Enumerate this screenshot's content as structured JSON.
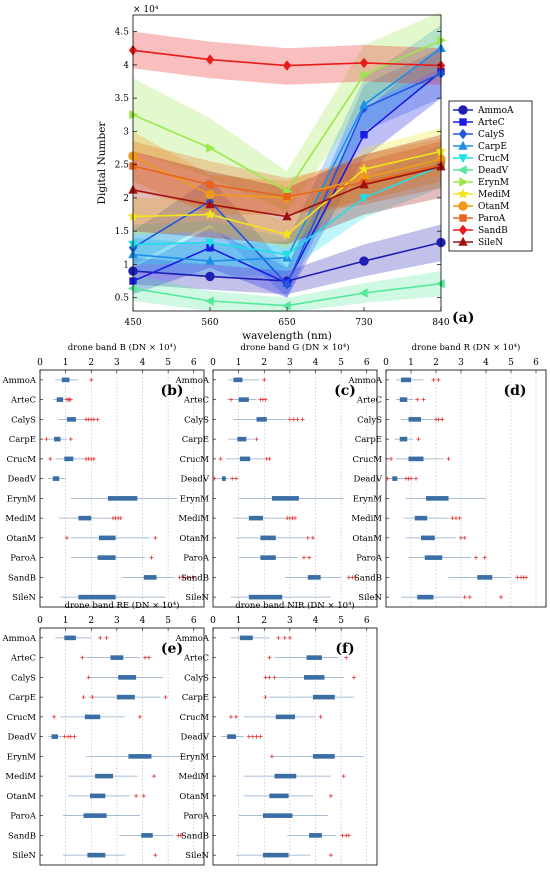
{
  "chart_data": [
    {
      "type": "line",
      "panel_label": "(a)",
      "xlabel": "wavelength (nm)",
      "ylabel": "Digital Number",
      "y_exponent_label": "× 10⁴",
      "x": [
        450,
        560,
        650,
        730,
        840
      ],
      "ylim": [
        0.3,
        4.75
      ],
      "y_ticks": [
        0.5,
        1,
        1.5,
        2,
        2.5,
        3,
        3.5,
        4,
        4.5
      ],
      "y_tick_labels": [
        "0.5",
        "1",
        "1.5",
        "2",
        "2.5",
        "3",
        "3.5",
        "4",
        "4.5"
      ],
      "grid": false,
      "legend_position": "right",
      "series": [
        {
          "name": "AmmoA",
          "color": "#1f1fb4",
          "marker": "circle",
          "values": [
            0.9,
            0.82,
            0.75,
            1.05,
            1.33
          ],
          "lower": [
            0.7,
            0.62,
            0.55,
            0.82,
            1.05
          ],
          "upper": [
            1.1,
            1.0,
            0.9,
            1.3,
            1.6
          ]
        },
        {
          "name": "ArteC",
          "color": "#1a1ae6",
          "marker": "square",
          "values": [
            0.75,
            1.25,
            0.72,
            2.95,
            3.9
          ],
          "lower": [
            0.55,
            0.95,
            0.5,
            2.6,
            3.5
          ],
          "upper": [
            0.95,
            1.55,
            0.95,
            3.3,
            4.3
          ]
        },
        {
          "name": "CalyS",
          "color": "#2156e0",
          "marker": "diamond",
          "values": [
            1.25,
            1.95,
            0.7,
            3.35,
            3.87
          ],
          "lower": [
            1.0,
            1.6,
            0.5,
            3.0,
            3.5
          ],
          "upper": [
            1.5,
            2.3,
            0.95,
            3.7,
            4.25
          ]
        },
        {
          "name": "CarpE",
          "color": "#1e8fe8",
          "marker": "triangle-up",
          "values": [
            1.15,
            1.05,
            1.1,
            3.4,
            4.25
          ],
          "lower": [
            0.9,
            0.8,
            0.85,
            3.0,
            3.85
          ],
          "upper": [
            1.4,
            1.3,
            1.35,
            3.8,
            4.6
          ]
        },
        {
          "name": "CrucM",
          "color": "#1ee0e6",
          "marker": "triangle-down",
          "values": [
            1.3,
            1.33,
            1.15,
            2.0,
            2.48
          ],
          "lower": [
            1.0,
            1.0,
            0.9,
            1.7,
            2.15
          ],
          "upper": [
            1.6,
            1.65,
            1.4,
            2.3,
            2.8
          ]
        },
        {
          "name": "DeadV",
          "color": "#55e89a",
          "marker": "triangle-left",
          "values": [
            0.64,
            0.45,
            0.38,
            0.57,
            0.71
          ],
          "lower": [
            0.45,
            0.3,
            0.28,
            0.42,
            0.52
          ],
          "upper": [
            0.85,
            0.6,
            0.5,
            0.72,
            0.9
          ]
        },
        {
          "name": "ErynM",
          "color": "#9ae84a",
          "marker": "triangle-right",
          "values": [
            3.25,
            2.75,
            2.1,
            3.85,
            4.37
          ],
          "lower": [
            2.7,
            2.3,
            1.8,
            3.4,
            3.95
          ],
          "upper": [
            3.8,
            3.2,
            2.4,
            4.3,
            4.8
          ]
        },
        {
          "name": "MediM",
          "color": "#f0e61a",
          "marker": "star",
          "values": [
            1.72,
            1.75,
            1.45,
            2.43,
            2.7
          ],
          "lower": [
            1.45,
            1.5,
            1.25,
            2.1,
            2.35
          ],
          "upper": [
            2.0,
            2.0,
            1.65,
            2.75,
            3.05
          ]
        },
        {
          "name": "OtanM",
          "color": "#f09a1a",
          "marker": "circle",
          "values": [
            2.63,
            2.05,
            2.0,
            2.3,
            2.58
          ],
          "lower": [
            2.25,
            1.75,
            1.75,
            1.95,
            2.25
          ],
          "upper": [
            3.0,
            2.35,
            2.25,
            2.65,
            2.9
          ]
        },
        {
          "name": "ParoA",
          "color": "#e8641a",
          "marker": "square",
          "values": [
            2.48,
            2.2,
            2.02,
            2.23,
            2.5
          ],
          "lower": [
            2.1,
            1.85,
            1.75,
            1.9,
            2.15
          ],
          "upper": [
            2.85,
            2.55,
            2.3,
            2.55,
            2.85
          ]
        },
        {
          "name": "SandB",
          "color": "#e81a1a",
          "marker": "diamond",
          "values": [
            4.22,
            4.08,
            3.99,
            4.03,
            3.99
          ],
          "lower": [
            3.95,
            3.8,
            3.7,
            3.75,
            3.7
          ],
          "upper": [
            4.5,
            4.35,
            4.25,
            4.3,
            4.25
          ]
        },
        {
          "name": "SileN",
          "color": "#a01010",
          "marker": "triangle-up",
          "values": [
            2.12,
            1.9,
            1.72,
            2.2,
            2.47
          ],
          "lower": [
            1.5,
            1.4,
            1.3,
            1.75,
            2.0
          ],
          "upper": [
            2.7,
            2.4,
            2.15,
            2.65,
            2.95
          ]
        }
      ]
    },
    {
      "type": "box",
      "title": "drone band B  (DN × 10⁴)",
      "panel_label": "(b)",
      "x_ticks": [
        0,
        1,
        2,
        3,
        4,
        5,
        6
      ],
      "categories": [
        "AmmoA",
        "ArteC",
        "CalyS",
        "CarpE",
        "CrucM",
        "DeadV",
        "ErynM",
        "MediM",
        "OtanM",
        "ParoA",
        "SandB",
        "SileN"
      ],
      "boxes": [
        {
          "wmin": 0.6,
          "q1": 0.85,
          "q3": 1.15,
          "wmax": 1.5,
          "outliers": [
            2.0
          ]
        },
        {
          "wmin": 0.5,
          "q1": 0.65,
          "q3": 0.9,
          "wmax": 1.0,
          "outliers": [
            1.05,
            1.1,
            1.15,
            1.2
          ]
        },
        {
          "wmin": 0.7,
          "q1": 1.05,
          "q3": 1.4,
          "wmax": 1.75,
          "outliers": [
            1.8,
            1.9,
            2.0,
            2.1,
            2.25
          ]
        },
        {
          "wmin": 0.3,
          "q1": 0.55,
          "q3": 0.8,
          "wmax": 1.05,
          "outliers": [
            0.25,
            1.2
          ]
        },
        {
          "wmin": 0.6,
          "q1": 0.95,
          "q3": 1.3,
          "wmax": 1.75,
          "outliers": [
            0.4,
            1.8,
            1.9,
            2.0,
            2.1
          ]
        },
        {
          "wmin": 0.3,
          "q1": 0.5,
          "q3": 0.75,
          "wmax": 1.0,
          "outliers": []
        },
        {
          "wmin": 1.2,
          "q1": 2.65,
          "q3": 3.8,
          "wmax": 5.35,
          "outliers": []
        },
        {
          "wmin": 0.75,
          "q1": 1.5,
          "q3": 2.0,
          "wmax": 2.75,
          "outliers": [
            2.85,
            2.95,
            3.05,
            3.15
          ]
        },
        {
          "wmin": 1.2,
          "q1": 2.3,
          "q3": 2.95,
          "wmax": 4.3,
          "outliers": [
            1.05,
            4.5
          ]
        },
        {
          "wmin": 1.2,
          "q1": 2.25,
          "q3": 2.95,
          "wmax": 4.1,
          "outliers": [
            4.35
          ]
        },
        {
          "wmin": 3.2,
          "q1": 4.05,
          "q3": 4.55,
          "wmax": 5.25,
          "outliers": [
            5.45,
            5.6,
            5.75,
            5.95
          ]
        },
        {
          "wmin": 0.8,
          "q1": 1.5,
          "q3": 2.95,
          "wmax": 4.9,
          "outliers": []
        }
      ]
    },
    {
      "type": "box",
      "title": "drone band G  (DN × 10⁴)",
      "panel_label": "(c)",
      "x_ticks": [
        0,
        1,
        2,
        3,
        4,
        5,
        6
      ],
      "categories": [
        "AmmoA",
        "ArteC",
        "CalyS",
        "CarpE",
        "CrucM",
        "DeadV",
        "ErynM",
        "MediM",
        "OtanM",
        "ParoA",
        "SandB",
        "SileN"
      ],
      "boxes": [
        {
          "wmin": 0.6,
          "q1": 0.8,
          "q3": 1.15,
          "wmax": 1.8,
          "outliers": [
            2.0
          ]
        },
        {
          "wmin": 0.55,
          "q1": 1.0,
          "q3": 1.4,
          "wmax": 1.7,
          "outliers": [
            0.7,
            1.85,
            1.95,
            2.05
          ]
        },
        {
          "wmin": 0.8,
          "q1": 1.7,
          "q3": 2.1,
          "wmax": 2.9,
          "outliers": [
            3.0,
            3.15,
            3.3,
            3.5
          ]
        },
        {
          "wmin": 0.6,
          "q1": 0.95,
          "q3": 1.3,
          "wmax": 1.6,
          "outliers": [
            1.7
          ]
        },
        {
          "wmin": 0.5,
          "q1": 1.05,
          "q3": 1.45,
          "wmax": 2.05,
          "outliers": [
            0.3,
            2.1,
            2.2
          ]
        },
        {
          "wmin": 0.15,
          "q1": 0.35,
          "q3": 0.5,
          "wmax": 0.6,
          "outliers": [
            0.05,
            0.75,
            0.9
          ]
        },
        {
          "wmin": 1.0,
          "q1": 2.3,
          "q3": 3.35,
          "wmax": 5.1,
          "outliers": []
        },
        {
          "wmin": 0.8,
          "q1": 1.4,
          "q3": 1.95,
          "wmax": 2.8,
          "outliers": [
            2.9,
            3.0,
            3.1,
            3.2
          ]
        },
        {
          "wmin": 0.9,
          "q1": 1.85,
          "q3": 2.45,
          "wmax": 3.6,
          "outliers": [
            3.7,
            3.9
          ]
        },
        {
          "wmin": 1.0,
          "q1": 1.85,
          "q3": 2.45,
          "wmax": 3.3,
          "outliers": [
            3.55,
            3.75
          ]
        },
        {
          "wmin": 2.8,
          "q1": 3.7,
          "q3": 4.2,
          "wmax": 5.0,
          "outliers": [
            5.3,
            5.45,
            5.55
          ]
        },
        {
          "wmin": 0.7,
          "q1": 1.4,
          "q3": 2.7,
          "wmax": 4.6,
          "outliers": []
        }
      ]
    },
    {
      "type": "box",
      "title": "drone band R  (DN × 10⁴)",
      "panel_label": "(d)",
      "x_ticks": [
        0,
        1,
        2,
        3,
        4,
        5,
        6
      ],
      "categories": [
        "AmmoA",
        "ArteC",
        "CalyS",
        "CarpE",
        "CrucM",
        "DeadV",
        "ErynM",
        "MediM",
        "OtanM",
        "ParoA",
        "SandB",
        "SileN"
      ],
      "boxes": [
        {
          "wmin": 0.4,
          "q1": 0.6,
          "q3": 1.0,
          "wmax": 1.5,
          "outliers": [
            1.9,
            2.1
          ]
        },
        {
          "wmin": 0.4,
          "q1": 0.55,
          "q3": 0.85,
          "wmax": 1.1,
          "outliers": [
            1.25,
            1.5
          ]
        },
        {
          "wmin": 0.6,
          "q1": 0.9,
          "q3": 1.4,
          "wmax": 1.9,
          "outliers": [
            2.0,
            2.1,
            2.25
          ]
        },
        {
          "wmin": 0.35,
          "q1": 0.55,
          "q3": 0.85,
          "wmax": 1.1,
          "outliers": [
            1.3
          ]
        },
        {
          "wmin": 0.4,
          "q1": 0.9,
          "q3": 1.5,
          "wmax": 2.3,
          "outliers": [
            0.2,
            2.5
          ]
        },
        {
          "wmin": 0.1,
          "q1": 0.25,
          "q3": 0.45,
          "wmax": 0.7,
          "outliers": [
            0.05,
            0.8,
            0.9,
            1.0,
            1.2
          ]
        },
        {
          "wmin": 0.8,
          "q1": 1.6,
          "q3": 2.5,
          "wmax": 4.0,
          "outliers": []
        },
        {
          "wmin": 0.7,
          "q1": 1.15,
          "q3": 1.65,
          "wmax": 2.5,
          "outliers": [
            2.65,
            2.8,
            2.95
          ]
        },
        {
          "wmin": 0.8,
          "q1": 1.4,
          "q3": 1.95,
          "wmax": 2.8,
          "outliers": [
            3.0,
            3.15
          ]
        },
        {
          "wmin": 0.9,
          "q1": 1.55,
          "q3": 2.25,
          "wmax": 3.4,
          "outliers": [
            3.6,
            3.95
          ]
        },
        {
          "wmin": 2.5,
          "q1": 3.65,
          "q3": 4.25,
          "wmax": 5.0,
          "outliers": [
            5.25,
            5.4,
            5.5,
            5.6
          ]
        },
        {
          "wmin": 0.6,
          "q1": 1.25,
          "q3": 1.9,
          "wmax": 3.0,
          "outliers": [
            3.15,
            3.35,
            4.6
          ]
        }
      ]
    },
    {
      "type": "box",
      "title": "drone band RE  (DN × 10⁴)",
      "panel_label": "(e)",
      "x_ticks": [
        0,
        1,
        2,
        3,
        4,
        5,
        6
      ],
      "categories": [
        "AmmoA",
        "ArteC",
        "CalyS",
        "CarpE",
        "CrucM",
        "DeadV",
        "ErynM",
        "MediM",
        "OtanM",
        "ParoA",
        "SandB",
        "SileN"
      ],
      "boxes": [
        {
          "wmin": 0.6,
          "q1": 0.95,
          "q3": 1.4,
          "wmax": 2.0,
          "outliers": [
            2.35,
            2.6
          ]
        },
        {
          "wmin": 1.8,
          "q1": 2.75,
          "q3": 3.25,
          "wmax": 3.9,
          "outliers": [
            1.65,
            4.1,
            4.25
          ]
        },
        {
          "wmin": 1.9,
          "q1": 3.05,
          "q3": 3.75,
          "wmax": 4.8,
          "outliers": [
            1.9
          ]
        },
        {
          "wmin": 1.9,
          "q1": 3.0,
          "q3": 3.7,
          "wmax": 4.7,
          "outliers": [
            1.7,
            2.05,
            4.9
          ]
        },
        {
          "wmin": 0.8,
          "q1": 1.75,
          "q3": 2.35,
          "wmax": 3.3,
          "outliers": [
            0.55,
            3.9
          ]
        },
        {
          "wmin": 0.3,
          "q1": 0.45,
          "q3": 0.7,
          "wmax": 0.85,
          "outliers": [
            0.95,
            1.1,
            1.2,
            1.35
          ]
        },
        {
          "wmin": 1.8,
          "q1": 3.45,
          "q3": 4.35,
          "wmax": 5.7,
          "outliers": []
        },
        {
          "wmin": 1.1,
          "q1": 2.15,
          "q3": 2.85,
          "wmax": 3.8,
          "outliers": [
            4.45
          ]
        },
        {
          "wmin": 1.1,
          "q1": 1.95,
          "q3": 2.55,
          "wmax": 3.5,
          "outliers": [
            3.75,
            4.05
          ]
        },
        {
          "wmin": 0.9,
          "q1": 1.7,
          "q3": 2.6,
          "wmax": 3.9,
          "outliers": []
        },
        {
          "wmin": 3.1,
          "q1": 3.95,
          "q3": 4.4,
          "wmax": 5.2,
          "outliers": [
            5.4,
            5.5
          ]
        },
        {
          "wmin": 0.9,
          "q1": 1.85,
          "q3": 2.55,
          "wmax": 3.3,
          "outliers": [
            4.5
          ]
        }
      ]
    },
    {
      "type": "box",
      "title": "drone band NIR  (DN × 10⁴)",
      "panel_label": "(f)",
      "x_ticks": [
        0,
        1,
        2,
        3,
        4,
        5,
        6
      ],
      "categories": [
        "AmmoA",
        "ArteC",
        "CalyS",
        "CarpE",
        "CrucM",
        "DeadV",
        "ErynM",
        "MediM",
        "OtanM",
        "ParoA",
        "SandB",
        "SileN"
      ],
      "boxes": [
        {
          "wmin": 0.7,
          "q1": 1.05,
          "q3": 1.55,
          "wmax": 2.2,
          "outliers": [
            2.55,
            2.8,
            3.0
          ]
        },
        {
          "wmin": 2.4,
          "q1": 3.65,
          "q3": 4.25,
          "wmax": 4.9,
          "outliers": [
            2.2,
            5.2
          ]
        },
        {
          "wmin": 2.5,
          "q1": 3.55,
          "q3": 4.35,
          "wmax": 5.1,
          "outliers": [
            2.05,
            2.2,
            2.4,
            5.5
          ]
        },
        {
          "wmin": 2.2,
          "q1": 3.9,
          "q3": 4.75,
          "wmax": 5.5,
          "outliers": [
            2.05
          ]
        },
        {
          "wmin": 1.2,
          "q1": 2.45,
          "q3": 3.2,
          "wmax": 4.0,
          "outliers": [
            0.7,
            0.9,
            4.2
          ]
        },
        {
          "wmin": 0.3,
          "q1": 0.55,
          "q3": 0.9,
          "wmax": 1.2,
          "outliers": [
            1.4,
            1.55,
            1.7,
            1.85
          ]
        },
        {
          "wmin": 2.3,
          "q1": 3.9,
          "q3": 4.75,
          "wmax": 5.9,
          "outliers": [
            2.3
          ]
        },
        {
          "wmin": 1.2,
          "q1": 2.4,
          "q3": 3.25,
          "wmax": 4.6,
          "outliers": [
            5.1
          ]
        },
        {
          "wmin": 1.2,
          "q1": 2.2,
          "q3": 2.95,
          "wmax": 3.9,
          "outliers": [
            4.6
          ]
        },
        {
          "wmin": 1.0,
          "q1": 1.95,
          "q3": 3.1,
          "wmax": 4.5,
          "outliers": []
        },
        {
          "wmin": 2.9,
          "q1": 3.75,
          "q3": 4.25,
          "wmax": 4.8,
          "outliers": [
            5.05,
            5.2,
            5.3
          ]
        },
        {
          "wmin": 0.9,
          "q1": 1.95,
          "q3": 2.95,
          "wmax": 3.8,
          "outliers": [
            4.6
          ]
        }
      ]
    }
  ],
  "colors": {
    "box_fill": "#3a6ea5",
    "whisker": "#8ea8c8",
    "outlier": "#e03030"
  }
}
